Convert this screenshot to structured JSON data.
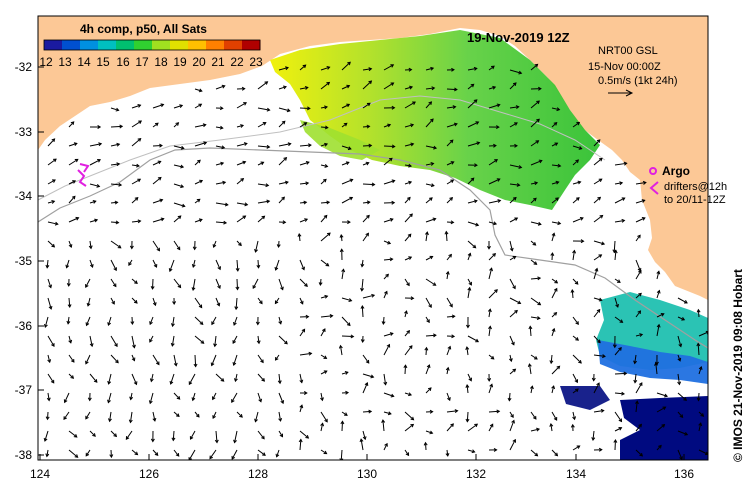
{
  "title": "19-Nov-2019 12Z",
  "colorbar": {
    "label": "4h comp, p50, All Sats",
    "ticks": [
      "12",
      "13",
      "14",
      "15",
      "16",
      "17",
      "18",
      "19",
      "20",
      "21",
      "22",
      "23"
    ],
    "colors": [
      "#1a1aa0",
      "#0050d0",
      "#0090e0",
      "#00c0c0",
      "#00c070",
      "#30d030",
      "#a0e020",
      "#e0e000",
      "#ffc000",
      "#ff8000",
      "#e04000",
      "#b00000"
    ]
  },
  "info": {
    "line1": "NRT00 GSL",
    "line2": "15-Nov 00:00Z",
    "line3": "0.5m/s (1kt 24h)"
  },
  "legend": {
    "argo": "Argo",
    "drifters1": "drifters@12h",
    "drifters2": "to 20/11-12Z"
  },
  "credit": "© IMOS 21-Nov-2019 09:08 Hobart",
  "axes": {
    "x_ticks": [
      "124",
      "126",
      "128",
      "130",
      "132",
      "134",
      "136"
    ],
    "y_ticks": [
      "-32",
      "-33",
      "-34",
      "-35",
      "-36",
      "-37",
      "-38"
    ]
  },
  "colors": {
    "land": "#fcc896",
    "sea": "#ffffff",
    "argo": "#e020e0",
    "bathymetry": "#a0a0a0"
  }
}
